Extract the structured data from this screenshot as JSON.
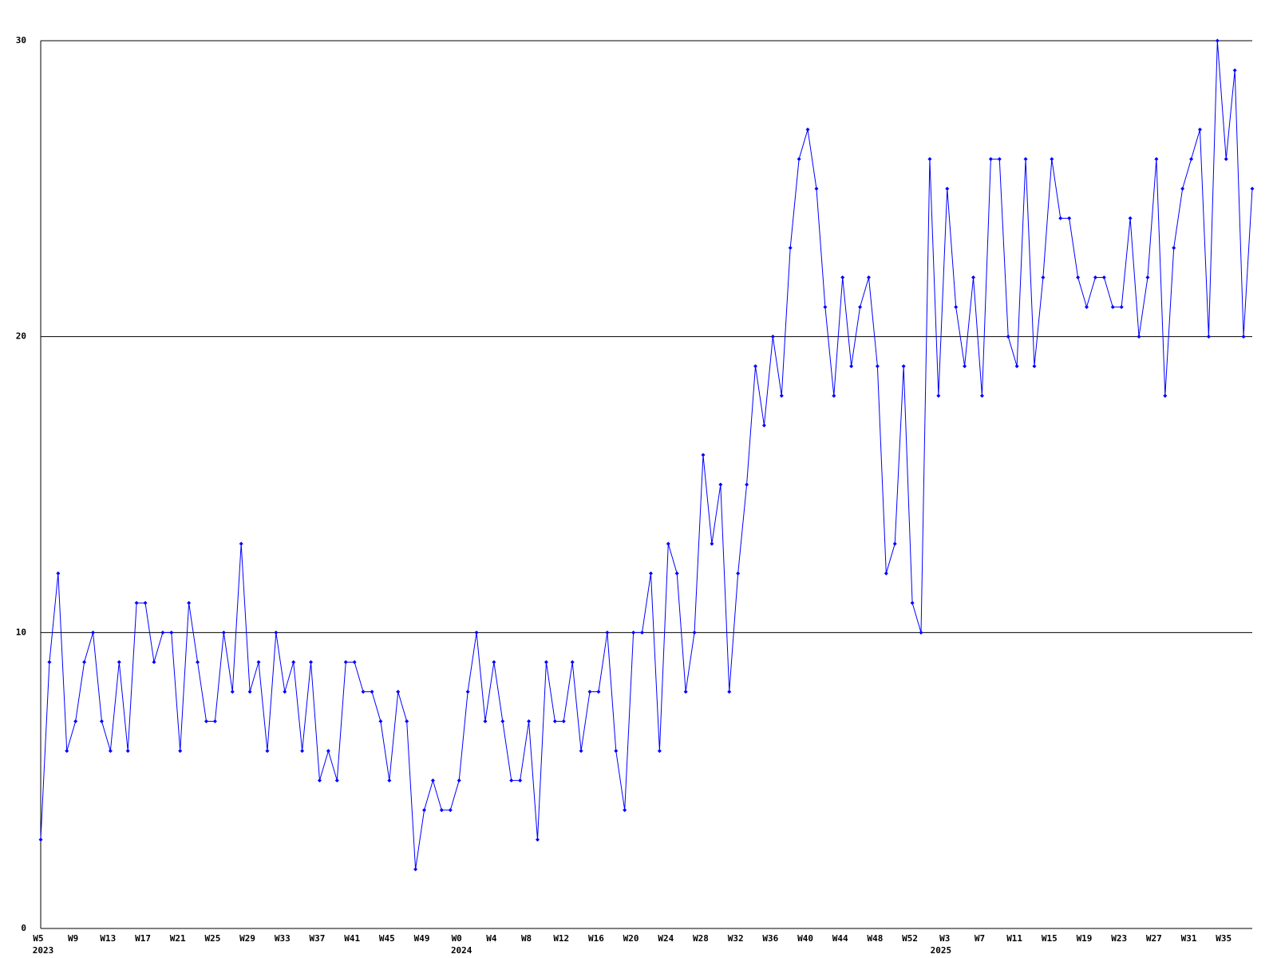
{
  "chart_data": {
    "type": "line",
    "color": "#0000ff",
    "grid": true,
    "ylim": [
      0,
      30
    ],
    "yticks": [
      0,
      10,
      20,
      30
    ],
    "categories": [
      "W5",
      null,
      null,
      null,
      "W9",
      null,
      null,
      null,
      "W13",
      null,
      null,
      null,
      "W17",
      null,
      null,
      null,
      "W21",
      null,
      null,
      null,
      "W25",
      null,
      null,
      null,
      "W29",
      null,
      null,
      null,
      "W33",
      null,
      null,
      null,
      "W37",
      null,
      null,
      null,
      "W41",
      null,
      null,
      null,
      "W45",
      null,
      null,
      null,
      "W49",
      null,
      null,
      null,
      "W0",
      null,
      null,
      null,
      "W4",
      null,
      null,
      null,
      "W8",
      null,
      null,
      null,
      "W12",
      null,
      null,
      null,
      "W16",
      null,
      null,
      null,
      "W20",
      null,
      null,
      null,
      "W24",
      null,
      null,
      null,
      "W28",
      null,
      null,
      null,
      "W32",
      null,
      null,
      null,
      "W36",
      null,
      null,
      null,
      "W40",
      null,
      null,
      null,
      "W44",
      null,
      null,
      null,
      "W48",
      null,
      null,
      null,
      "W52",
      null,
      null,
      null,
      "W3",
      null,
      null,
      null,
      "W7",
      null,
      null,
      null,
      "W11",
      null,
      null,
      null,
      "W15",
      null,
      null,
      null,
      "W19",
      null,
      null,
      null,
      "W23",
      null,
      null,
      null,
      "W27",
      null,
      null,
      null,
      "W31",
      null,
      null,
      null,
      "W35",
      null,
      null,
      null
    ],
    "category_groups": [
      "2023",
      null,
      null,
      null,
      null,
      null,
      null,
      null,
      null,
      null,
      null,
      null,
      null,
      null,
      null,
      null,
      null,
      null,
      null,
      null,
      null,
      null,
      null,
      null,
      null,
      null,
      null,
      null,
      null,
      null,
      null,
      null,
      null,
      null,
      null,
      null,
      null,
      null,
      null,
      null,
      null,
      null,
      null,
      null,
      null,
      null,
      null,
      null,
      "2024",
      null,
      null,
      null,
      null,
      null,
      null,
      null,
      null,
      null,
      null,
      null,
      null,
      null,
      null,
      null,
      null,
      null,
      null,
      null,
      null,
      null,
      null,
      null,
      null,
      null,
      null,
      null,
      null,
      null,
      null,
      null,
      null,
      null,
      null,
      null,
      null,
      null,
      null,
      null,
      null,
      null,
      null,
      null,
      null,
      null,
      null,
      null,
      null,
      null,
      null,
      null,
      null,
      null,
      null,
      "2025",
      null,
      null,
      null,
      null,
      null,
      null,
      null,
      null,
      null,
      null,
      null,
      null,
      null,
      null,
      null,
      null,
      null,
      null,
      null,
      null,
      null,
      null,
      null,
      null,
      null,
      null,
      null,
      null,
      null,
      null,
      null,
      null,
      null,
      null,
      null,
      null,
      null,
      null
    ],
    "values": [
      3,
      9,
      12,
      6,
      7,
      9,
      10,
      7,
      6,
      9,
      6,
      11,
      11,
      9,
      10,
      10,
      6,
      11,
      9,
      7,
      7,
      10,
      8,
      13,
      8,
      9,
      6,
      10,
      8,
      9,
      6,
      9,
      5,
      6,
      5,
      9,
      9,
      8,
      8,
      7,
      5,
      8,
      7,
      2,
      4,
      5,
      4,
      4,
      5,
      8,
      10,
      7,
      9,
      7,
      5,
      5,
      7,
      3,
      9,
      7,
      7,
      9,
      6,
      8,
      8,
      10,
      6,
      4,
      10,
      10,
      12,
      6,
      13,
      12,
      8,
      10,
      16,
      13,
      15,
      8,
      12,
      15,
      19,
      17,
      20,
      18,
      23,
      26,
      27,
      25,
      21,
      18,
      22,
      19,
      21,
      22,
      19,
      12,
      13,
      19,
      11,
      10,
      26,
      18,
      25,
      21,
      19,
      22,
      18,
      26,
      26,
      20,
      19,
      26,
      19,
      22,
      26,
      24,
      24,
      22,
      21,
      22,
      22,
      21,
      21,
      24,
      20,
      22,
      26,
      18,
      23,
      25,
      26,
      27,
      20,
      30,
      26,
      29,
      20,
      25
    ]
  }
}
